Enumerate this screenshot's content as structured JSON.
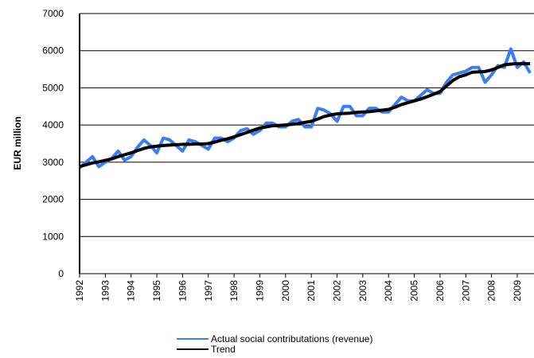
{
  "chart_data": {
    "type": "line",
    "y_label": "EUR million",
    "x": [
      1992,
      1992.25,
      1992.5,
      1992.75,
      1993,
      1993.25,
      1993.5,
      1993.75,
      1994,
      1994.25,
      1994.5,
      1994.75,
      1995,
      1995.25,
      1995.5,
      1995.75,
      1996,
      1996.25,
      1996.5,
      1996.75,
      1997,
      1997.25,
      1997.5,
      1997.75,
      1998,
      1998.25,
      1998.5,
      1998.75,
      1999,
      1999.25,
      1999.5,
      1999.75,
      2000,
      2000.25,
      2000.5,
      2000.75,
      2001,
      2001.25,
      2001.5,
      2001.75,
      2002,
      2002.25,
      2002.5,
      2002.75,
      2003,
      2003.25,
      2003.5,
      2003.75,
      2004,
      2004.25,
      2004.5,
      2004.75,
      2005,
      2005.25,
      2005.5,
      2005.75,
      2006,
      2006.25,
      2006.5,
      2006.75,
      2007,
      2007.25,
      2007.5,
      2007.75,
      2008,
      2008.25,
      2008.5,
      2008.75,
      2009,
      2009.25,
      2009.5
    ],
    "series": [
      {
        "name": "Actual social contributations (revenue)",
        "color": "#3b7ef2",
        "values": [
          2850,
          3000,
          3150,
          2880,
          3000,
          3100,
          3300,
          3050,
          3150,
          3400,
          3600,
          3450,
          3250,
          3650,
          3600,
          3450,
          3300,
          3600,
          3550,
          3450,
          3350,
          3650,
          3650,
          3550,
          3650,
          3850,
          3900,
          3750,
          3850,
          4050,
          4050,
          3950,
          3950,
          4100,
          4150,
          3950,
          3950,
          4450,
          4400,
          4300,
          4100,
          4500,
          4500,
          4250,
          4250,
          4450,
          4450,
          4350,
          4350,
          4550,
          4750,
          4650,
          4650,
          4800,
          4950,
          4850,
          4850,
          5150,
          5350,
          5400,
          5450,
          5550,
          5550,
          5150,
          5350,
          5600,
          5550,
          6050,
          5550,
          5700,
          5400
        ]
      },
      {
        "name": "Trend",
        "color": "#000000",
        "values": [
          2880,
          2930,
          2980,
          3010,
          3050,
          3090,
          3150,
          3200,
          3250,
          3310,
          3370,
          3410,
          3430,
          3450,
          3460,
          3470,
          3480,
          3480,
          3490,
          3490,
          3500,
          3540,
          3590,
          3630,
          3680,
          3740,
          3800,
          3860,
          3920,
          3950,
          3980,
          3990,
          4000,
          4020,
          4040,
          4070,
          4100,
          4160,
          4230,
          4270,
          4300,
          4310,
          4320,
          4340,
          4350,
          4360,
          4380,
          4400,
          4420,
          4480,
          4550,
          4600,
          4650,
          4700,
          4760,
          4830,
          4900,
          5050,
          5200,
          5300,
          5350,
          5420,
          5430,
          5440,
          5480,
          5550,
          5620,
          5640,
          5650,
          5650,
          5650
        ]
      }
    ],
    "xlim": [
      1992,
      2009.65
    ],
    "xticks": [
      1992,
      1993,
      1994,
      1995,
      1996,
      1997,
      1998,
      1999,
      2000,
      2001,
      2002,
      2003,
      2004,
      2005,
      2006,
      2007,
      2008,
      2009
    ],
    "ylim": [
      0,
      7000
    ],
    "yticks": [
      0,
      1000,
      2000,
      3000,
      4000,
      5000,
      6000,
      7000
    ],
    "grid": true
  }
}
